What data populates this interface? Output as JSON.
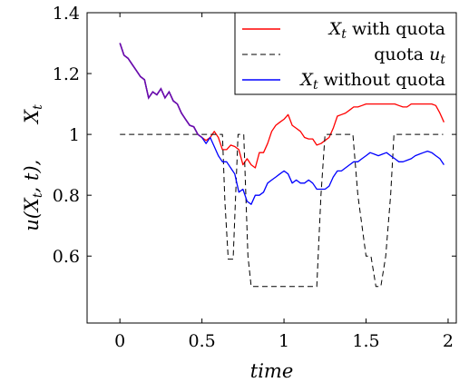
{
  "chart_data": {
    "type": "line",
    "title": "",
    "xlabel": "time",
    "ylabel": "u(X_t, t),   X_t",
    "ylabel_parts": [
      "u(X",
      "t",
      ", t),",
      "X",
      "t"
    ],
    "xlim": [
      -0.2,
      2.05
    ],
    "ylim": [
      0.38,
      1.4
    ],
    "x_ticks": [
      0,
      0.5,
      1,
      1.5,
      2
    ],
    "x_tick_labels": [
      "0",
      "0.5",
      "1",
      "1.5",
      "2"
    ],
    "y_ticks": [
      0.6,
      0.8,
      1.0,
      1.2,
      1.4
    ],
    "y_tick_labels": [
      "0.6",
      "0.8",
      "1",
      "1.2",
      "1.4"
    ],
    "grid": false,
    "legend_placement": "top-right",
    "series": [
      {
        "name": "X_t with quota",
        "legend_parts": [
          "X",
          "t",
          " with quota"
        ],
        "color": "#ff0000",
        "style": "solid",
        "x": [
          0,
          0.025,
          0.05,
          0.075,
          0.1,
          0.125,
          0.15,
          0.175,
          0.2,
          0.225,
          0.25,
          0.275,
          0.3,
          0.325,
          0.35,
          0.375,
          0.4,
          0.425,
          0.45,
          0.475,
          0.5,
          0.525,
          0.55,
          0.575,
          0.6,
          0.625,
          0.65,
          0.675,
          0.7,
          0.725,
          0.75,
          0.775,
          0.8,
          0.825,
          0.85,
          0.875,
          0.9,
          0.925,
          0.95,
          0.975,
          1.0,
          1.025,
          1.05,
          1.075,
          1.1,
          1.125,
          1.15,
          1.175,
          1.2,
          1.225,
          1.25,
          1.275,
          1.3,
          1.325,
          1.35,
          1.375,
          1.4,
          1.425,
          1.45,
          1.475,
          1.5,
          1.525,
          1.55,
          1.575,
          1.6,
          1.625,
          1.65,
          1.675,
          1.7,
          1.725,
          1.75,
          1.775,
          1.8,
          1.825,
          1.85,
          1.875,
          1.9,
          1.925,
          1.95,
          1.975
        ],
        "y": [
          1.3,
          1.26,
          1.25,
          1.23,
          1.21,
          1.19,
          1.18,
          1.12,
          1.14,
          1.13,
          1.15,
          1.12,
          1.14,
          1.11,
          1.1,
          1.07,
          1.05,
          1.03,
          1.025,
          1.0,
          0.99,
          0.98,
          0.99,
          1.01,
          0.99,
          0.95,
          0.95,
          0.965,
          0.96,
          0.95,
          0.9,
          0.92,
          0.9,
          0.89,
          0.94,
          0.94,
          0.97,
          1.01,
          1.03,
          1.04,
          1.05,
          1.065,
          1.03,
          1.02,
          1.01,
          0.99,
          0.985,
          0.985,
          0.965,
          0.97,
          0.98,
          0.99,
          1.02,
          1.06,
          1.065,
          1.07,
          1.08,
          1.09,
          1.09,
          1.095,
          1.1,
          1.1,
          1.1,
          1.1,
          1.1,
          1.1,
          1.1,
          1.1,
          1.095,
          1.09,
          1.09,
          1.1,
          1.1,
          1.1,
          1.1,
          1.1,
          1.1,
          1.095,
          1.07,
          1.04
        ]
      },
      {
        "name": "quota u_t",
        "legend_parts": [
          "quota ",
          "u",
          "t"
        ],
        "color": "#000000",
        "style": "dashed",
        "x": [
          0,
          0.6,
          0.625,
          0.64,
          0.66,
          0.69,
          0.72,
          0.755,
          0.78,
          0.8,
          1.2,
          1.225,
          1.25,
          1.275,
          1.42,
          1.45,
          1.5,
          1.53,
          1.56,
          1.59,
          1.62,
          1.65,
          1.67,
          1.97
        ],
        "y": [
          1.0,
          1.0,
          1.0,
          0.78,
          0.59,
          0.59,
          1.0,
          1.0,
          0.6,
          0.5,
          0.5,
          0.8,
          1.0,
          1.0,
          1.0,
          0.8,
          0.6,
          0.6,
          0.5,
          0.5,
          0.6,
          0.8,
          1.0,
          1.0
        ]
      },
      {
        "name": "X_t without quota",
        "legend_parts": [
          "X",
          "t",
          " without quota"
        ],
        "color": "#0000ff",
        "style": "solid",
        "x": [
          0,
          0.025,
          0.05,
          0.075,
          0.1,
          0.125,
          0.15,
          0.175,
          0.2,
          0.225,
          0.25,
          0.275,
          0.3,
          0.325,
          0.35,
          0.375,
          0.4,
          0.425,
          0.45,
          0.475,
          0.5,
          0.525,
          0.55,
          0.575,
          0.6,
          0.625,
          0.65,
          0.675,
          0.7,
          0.725,
          0.75,
          0.775,
          0.8,
          0.825,
          0.85,
          0.875,
          0.9,
          0.925,
          0.95,
          0.975,
          1.0,
          1.025,
          1.05,
          1.075,
          1.1,
          1.125,
          1.15,
          1.175,
          1.2,
          1.225,
          1.25,
          1.275,
          1.3,
          1.325,
          1.35,
          1.375,
          1.4,
          1.425,
          1.45,
          1.475,
          1.5,
          1.525,
          1.55,
          1.575,
          1.6,
          1.625,
          1.65,
          1.675,
          1.7,
          1.725,
          1.75,
          1.775,
          1.8,
          1.825,
          1.85,
          1.875,
          1.9,
          1.925,
          1.95,
          1.975
        ],
        "y": [
          1.3,
          1.26,
          1.25,
          1.23,
          1.21,
          1.19,
          1.18,
          1.12,
          1.14,
          1.13,
          1.15,
          1.12,
          1.14,
          1.11,
          1.1,
          1.07,
          1.05,
          1.03,
          1.025,
          1.0,
          0.99,
          0.97,
          0.99,
          0.96,
          0.93,
          0.91,
          0.91,
          0.89,
          0.87,
          0.81,
          0.82,
          0.78,
          0.77,
          0.8,
          0.8,
          0.81,
          0.84,
          0.85,
          0.86,
          0.87,
          0.88,
          0.87,
          0.84,
          0.85,
          0.84,
          0.84,
          0.85,
          0.84,
          0.82,
          0.82,
          0.82,
          0.83,
          0.86,
          0.88,
          0.88,
          0.89,
          0.9,
          0.91,
          0.91,
          0.92,
          0.93,
          0.94,
          0.935,
          0.93,
          0.935,
          0.94,
          0.93,
          0.92,
          0.91,
          0.91,
          0.915,
          0.92,
          0.93,
          0.935,
          0.94,
          0.945,
          0.94,
          0.93,
          0.92,
          0.9
        ]
      }
    ]
  }
}
